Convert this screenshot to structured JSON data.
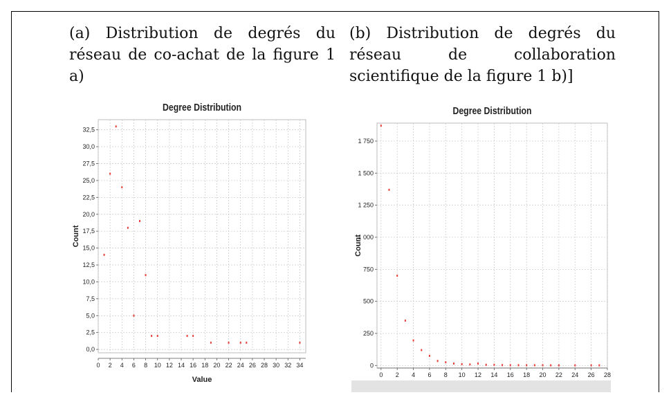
{
  "captions": {
    "a": "(a) Distribution de degrés du réseau de co-achat de la figure 1 a)",
    "b": "(b) Distribution de degrés du réseau de collaboration scientifique de la figure 1 b)]"
  },
  "colors": {
    "point": "#e8413a",
    "grid": "#c8c8c8",
    "axis": "#555555",
    "text": "#222222"
  },
  "chart_data": [
    {
      "type": "scatter",
      "title": "Degree Distribution",
      "xlabel": "Value",
      "ylabel": "Count",
      "xlim": [
        0,
        35
      ],
      "ylim": [
        -0.5,
        34
      ],
      "xticks": [
        "0",
        "2",
        "4",
        "6",
        "8",
        "10",
        "12",
        "14",
        "16",
        "18",
        "20",
        "22",
        "24",
        "26",
        "28",
        "30",
        "32",
        "34"
      ],
      "xtick_values": [
        0,
        2,
        4,
        6,
        8,
        10,
        12,
        14,
        16,
        18,
        20,
        22,
        24,
        26,
        28,
        30,
        32,
        34
      ],
      "yticks": [
        "0,0",
        "2,5",
        "5,0",
        "7,5",
        "10,0",
        "12,5",
        "15,0",
        "17,5",
        "20,0",
        "22,5",
        "25,0",
        "27,5",
        "30,0",
        "32,5"
      ],
      "ytick_values": [
        0,
        2.5,
        5,
        7.5,
        10,
        12.5,
        15,
        17.5,
        20,
        22.5,
        25,
        27.5,
        30,
        32.5
      ],
      "grid": true,
      "x": [
        1,
        2,
        3,
        4,
        5,
        6,
        7,
        8,
        9,
        10,
        15,
        16,
        19,
        22,
        24,
        25,
        34
      ],
      "y": [
        14,
        26,
        33,
        24,
        18,
        5,
        19,
        11,
        2,
        2,
        2,
        2,
        1,
        1,
        1,
        1,
        1
      ]
    },
    {
      "type": "scatter",
      "title": "Degree Distribution",
      "xlabel": "",
      "ylabel": "Count",
      "xlim": [
        -0.5,
        28
      ],
      "ylim": [
        -20,
        1890
      ],
      "xticks": [
        "0",
        "2",
        "4",
        "6",
        "8",
        "10",
        "12",
        "14",
        "16",
        "18",
        "20",
        "22",
        "24",
        "26",
        "28"
      ],
      "xtick_values": [
        0,
        2,
        4,
        6,
        8,
        10,
        12,
        14,
        16,
        18,
        20,
        22,
        24,
        26,
        28
      ],
      "yticks": [
        "0",
        "250",
        "500",
        "750",
        "1 000",
        "1 250",
        "1 500",
        "1 750"
      ],
      "ytick_values": [
        0,
        250,
        500,
        750,
        1000,
        1250,
        1500,
        1750
      ],
      "grid": true,
      "x": [
        0,
        1,
        2,
        3,
        4,
        5,
        6,
        7,
        8,
        9,
        10,
        11,
        12,
        13,
        14,
        15,
        16,
        17,
        18,
        19,
        20,
        21,
        22,
        24,
        26,
        27
      ],
      "y": [
        1870,
        1370,
        700,
        350,
        195,
        120,
        75,
        35,
        25,
        15,
        10,
        8,
        15,
        5,
        5,
        3,
        2,
        2,
        2,
        2,
        2,
        1,
        1,
        1,
        1,
        1
      ]
    }
  ]
}
